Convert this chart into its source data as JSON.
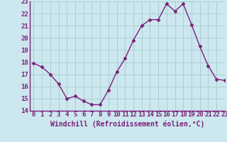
{
  "x": [
    0,
    1,
    2,
    3,
    4,
    5,
    6,
    7,
    8,
    9,
    10,
    11,
    12,
    13,
    14,
    15,
    16,
    17,
    18,
    19,
    20,
    21,
    22,
    23
  ],
  "y": [
    17.9,
    17.6,
    17.0,
    16.2,
    15.0,
    15.2,
    14.8,
    14.5,
    14.5,
    15.7,
    17.2,
    18.3,
    19.8,
    21.0,
    21.5,
    21.5,
    22.8,
    22.2,
    22.8,
    21.1,
    19.3,
    17.7,
    16.6,
    16.5
  ],
  "line_color": "#7B1F7B",
  "marker": "D",
  "marker_size": 2.5,
  "bg_color": "#cce8ee",
  "grid_color": "#aacdd5",
  "xlabel": "Windchill (Refroidissement éolien,°C)",
  "xlabel_fontsize": 7,
  "ylim": [
    14,
    23
  ],
  "xlim": [
    -0.5,
    23
  ],
  "yticks": [
    14,
    15,
    16,
    17,
    18,
    19,
    20,
    21,
    22,
    23
  ],
  "xticks": [
    0,
    1,
    2,
    3,
    4,
    5,
    6,
    7,
    8,
    9,
    10,
    11,
    12,
    13,
    14,
    15,
    16,
    17,
    18,
    19,
    20,
    21,
    22,
    23
  ],
  "tick_fontsize": 6.5,
  "linewidth": 1.0
}
